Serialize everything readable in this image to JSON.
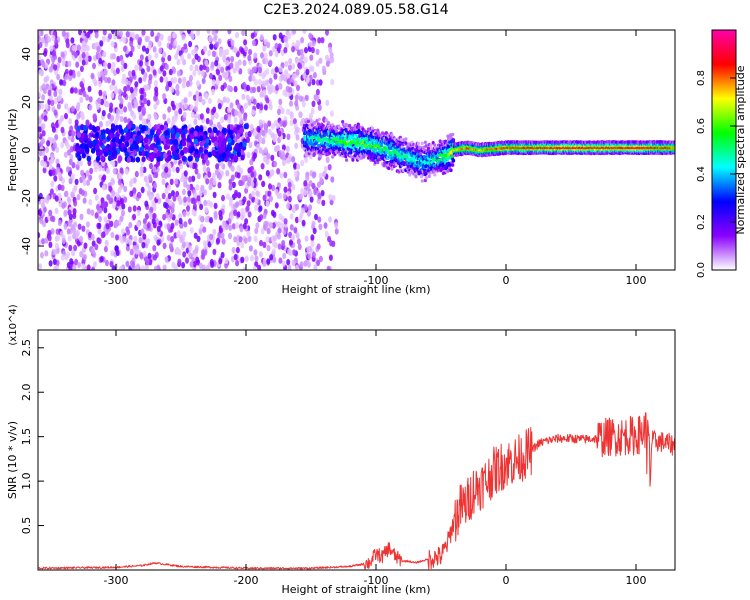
{
  "title": "C2E3.2024.089.05.58.G14",
  "chart_data": [
    {
      "type": "heatmap",
      "xlabel": "Height of straight line (km)",
      "ylabel": "Frequency (Hz)",
      "xlim": [
        -360,
        130
      ],
      "ylim": [
        -50,
        50
      ],
      "x_ticks": [
        -300,
        -200,
        -100,
        0,
        100
      ],
      "y_ticks": [
        -40,
        -20,
        0,
        20,
        40
      ],
      "colorbar": {
        "label": "Normalized spectral amplitude",
        "range": [
          0,
          1
        ],
        "ticks": [
          0.0,
          0.2,
          0.4,
          0.6,
          0.8
        ],
        "colors": [
          "#ffffff",
          "#8a00ff",
          "#0000ff",
          "#00ffff",
          "#00ff00",
          "#ffff00",
          "#ff0000",
          "#ff00aa"
        ]
      },
      "ridge": {
        "x": [
          -155,
          -130,
          -110,
          -95,
          -80,
          -65,
          -55,
          -45,
          -40,
          -30,
          -20,
          0,
          50,
          100,
          130
        ],
        "y": [
          5,
          4,
          3,
          1,
          -2,
          -5,
          -4,
          -2,
          0,
          1,
          0,
          1,
          1,
          1,
          1
        ],
        "amplitude": [
          0.45,
          0.55,
          0.6,
          0.55,
          0.5,
          0.45,
          0.5,
          0.6,
          0.75,
          0.8,
          0.75,
          0.85,
          0.9,
          0.9,
          0.8
        ]
      },
      "grid": false
    },
    {
      "type": "line",
      "xlabel": "Height of straight line (km)",
      "ylabel": "SNR (10 * v/v)",
      "y_multiplier": "(x10^4)",
      "xlim": [
        -360,
        130
      ],
      "ylim": [
        0,
        2.7
      ],
      "x_ticks": [
        -300,
        -200,
        -100,
        0,
        100
      ],
      "y_ticks": [
        0.5,
        1.0,
        1.5,
        2.0,
        2.5
      ],
      "color": "#ee3333",
      "series": [
        {
          "x": [
            -360,
            -300,
            -280,
            -270,
            -250,
            -200,
            -150,
            -120,
            -105,
            -100,
            -95,
            -90,
            -85,
            -80,
            -75,
            -70,
            -65,
            -60,
            -55,
            -50,
            -45,
            -40,
            -35,
            -30,
            -25,
            -20,
            -15,
            -10,
            -5,
            0,
            5,
            10,
            15,
            20,
            25,
            30,
            40,
            50,
            60,
            70,
            80,
            90,
            95,
            100,
            105,
            108,
            110,
            111,
            112,
            115,
            120,
            130
          ],
          "y": [
            0.02,
            0.03,
            0.05,
            0.08,
            0.04,
            0.02,
            0.02,
            0.04,
            0.08,
            0.18,
            0.15,
            0.25,
            0.15,
            0.1,
            0.1,
            0.08,
            0.1,
            0.12,
            0.14,
            0.15,
            0.3,
            0.55,
            0.7,
            0.75,
            0.9,
            0.95,
            1.0,
            1.1,
            1.15,
            1.2,
            1.22,
            1.25,
            1.3,
            1.35,
            1.42,
            1.45,
            1.48,
            1.48,
            1.47,
            1.48,
            1.5,
            1.5,
            1.52,
            1.5,
            1.55,
            1.6,
            1.45,
            0.9,
            1.45,
            1.45,
            1.44,
            1.4
          ]
        }
      ],
      "grid": false
    }
  ]
}
